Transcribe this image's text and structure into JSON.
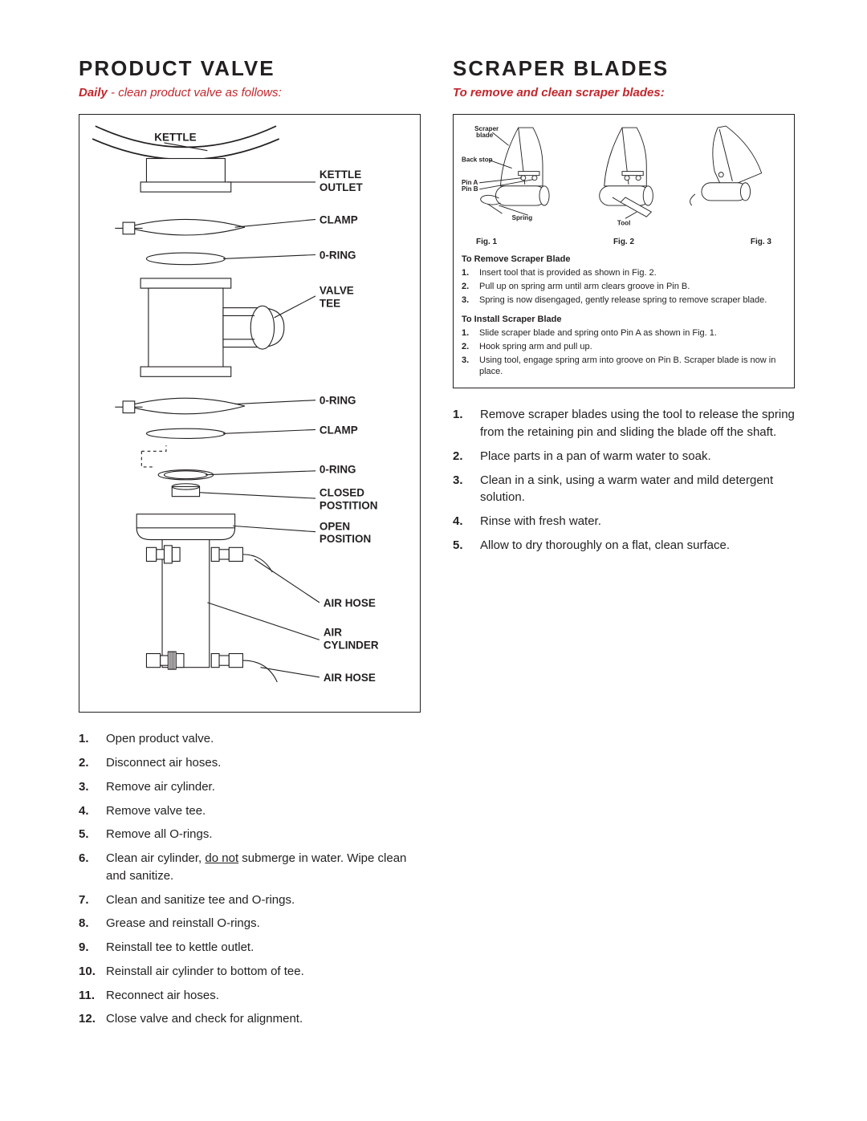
{
  "left": {
    "heading": "Product Valve",
    "sub_bold": "Daily",
    "sub_rest": " - clean product valve as follows:",
    "labels": {
      "kettle": "KETTLE",
      "kettle_outlet_1": "KETTLE",
      "kettle_outlet_2": "OUTLET",
      "clamp": "CLAMP",
      "oring": "0-RING",
      "valve_tee_1": "VALVE",
      "valve_tee_2": "TEE",
      "closed_1": "CLOSED",
      "closed_2": "POSTITION",
      "open_1": "OPEN",
      "open_2": "POSITION",
      "air_hose": "AIR HOSE",
      "air_cyl_1": "AIR",
      "air_cyl_2": "CYLINDER"
    },
    "steps": [
      "Open product valve.",
      "Disconnect air hoses.",
      "Remove air cylinder.",
      "Remove valve tee.",
      "Remove all O-rings.",
      "Clean air cylinder, <span class=\"noul\">do not</span> submerge in water. Wipe clean and sanitize.",
      "Clean and sanitize tee and O-rings.",
      "Grease and reinstall O-rings.",
      "Reinstall tee to kettle outlet.",
      "Reinstall air cylinder to bottom of tee.",
      "Reconnect air hoses.",
      "Close valve and check for alignment."
    ]
  },
  "right": {
    "heading": "Scraper Blades",
    "sub": "To remove and clean scraper blades:",
    "fig1": "Fig. 1",
    "fig2": "Fig. 2",
    "fig3": "Fig. 3",
    "lbl_blade_1": "Scraper",
    "lbl_blade_2": "blade",
    "lbl_backstop": "Back stop",
    "lbl_pina": "Pin A",
    "lbl_pinb": "Pin B",
    "lbl_spring": "Spring",
    "lbl_tool": "Tool",
    "remove_h": "To Remove Scraper Blade",
    "remove_steps": [
      "Insert tool that is provided as shown in Fig. 2.",
      "Pull up on spring arm until arm clears groove in Pin B.",
      "Spring is now disengaged, gently release spring to remove scraper blade."
    ],
    "install_h": "To Install Scraper Blade",
    "install_steps": [
      "Slide scraper blade and spring onto Pin A as shown in Fig. 1.",
      "Hook spring arm and pull up.",
      "Using tool, engage spring arm into groove on Pin B. Scraper blade is now in place."
    ],
    "steps": [
      "Remove scraper blades using the tool to release the spring from the retaining pin and sliding the blade off the shaft.",
      "Place parts in a pan of warm water to soak.",
      "Clean in a sink, using a warm water and mild detergent solution.",
      "Rinse with fresh water.",
      "Allow to dry thoroughly on a flat, clean surface."
    ]
  }
}
